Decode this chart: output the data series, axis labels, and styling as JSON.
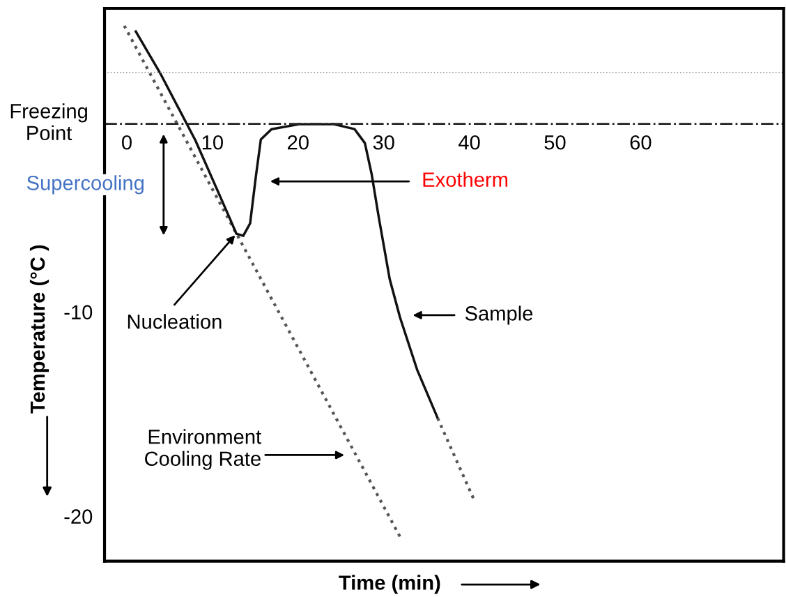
{
  "chart_data": {
    "type": "line",
    "xlabel": "Time (min)",
    "ylabel": "Temperature (°C )",
    "xlim": [
      -2.6,
      76.7
    ],
    "ylim": [
      -22.2,
      4.85
    ],
    "xticks": [
      0,
      10,
      20,
      30,
      40,
      50,
      60
    ],
    "yticks": [
      -10,
      -20
    ],
    "series": [
      {
        "color": "#555555",
        "line_style": "dotted",
        "x": [
          -0.3,
          31.9
        ],
        "values": [
          4.0,
          -21.0
        ]
      },
      {
        "color": "#111111",
        "line_style": "solid",
        "x": [
          1.05,
          4,
          8,
          12.0,
          12.8,
          13.6,
          14.4,
          15.1,
          15.65,
          16.9,
          20.1,
          24.2,
          26.6,
          27.8,
          28.6,
          29.4,
          30.7,
          31.9,
          33.9,
          36.3
        ],
        "values": [
          3.72,
          1.6,
          -1.6,
          -5.4,
          -6.18,
          -6.28,
          -5.67,
          -3.28,
          -1.57,
          -1.06,
          -0.82,
          -0.82,
          -1.06,
          -1.74,
          -3.28,
          -5.32,
          -8.4,
          -10.27,
          -12.83,
          -15.2
        ]
      },
      {
        "color": "#555555",
        "line_style": "dotted",
        "x": [
          36.3,
          40.6
        ],
        "values": [
          -15.2,
          -19.25
        ]
      }
    ],
    "ref_lines": [
      {
        "axis": "y",
        "value": -0.8,
        "label": "Freezing Point",
        "line_style": "dashdot",
        "color": "#222222"
      },
      {
        "axis": "y",
        "value": 1.7,
        "color": "#888888",
        "line_style": "dotted"
      }
    ],
    "annotations": [
      "Supercooling",
      "Exotherm",
      {
        "text": "Nucleation",
        "x": 12.65,
        "y": -6.25
      },
      "Sample",
      "Environment Cooling Rate"
    ],
    "grid": false,
    "legend": false,
    "marker": "none"
  }
}
